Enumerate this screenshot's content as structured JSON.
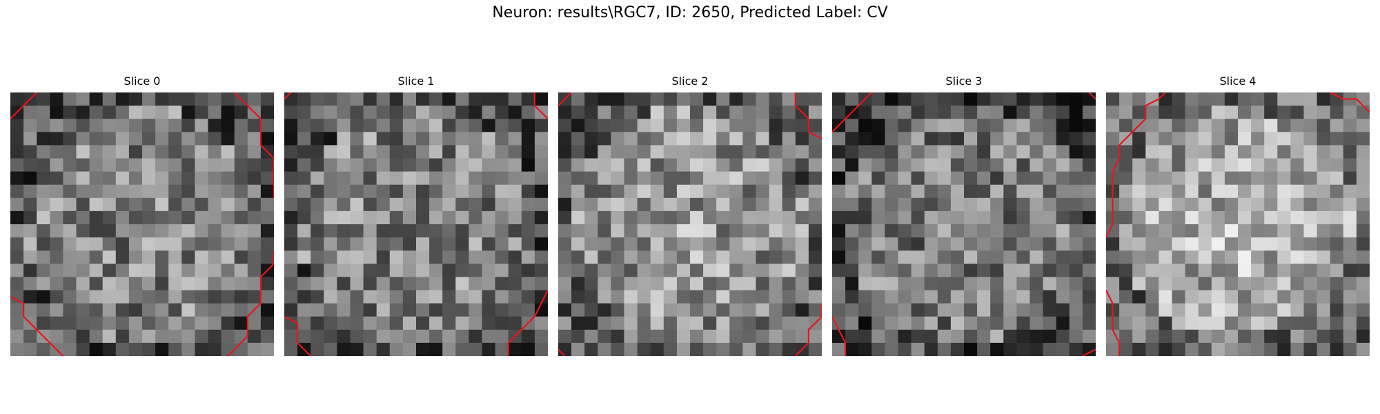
{
  "figure": {
    "title": "Neuron: results\\RGC7, ID: 2650, Predicted Label: CV"
  },
  "slices": [
    {
      "title": "Slice 0",
      "seed": 11,
      "base": 128,
      "radius": 0.9,
      "contrast": 0,
      "contours": [
        [
          [
            0,
            2
          ],
          [
            2,
            0
          ]
        ],
        [
          [
            17,
            0
          ],
          [
            19,
            2
          ],
          [
            19,
            4
          ],
          [
            20,
            5
          ],
          [
            20,
            8
          ]
        ],
        [
          [
            0,
            15.5
          ],
          [
            1,
            16
          ],
          [
            1,
            17
          ],
          [
            4,
            20
          ],
          [
            4,
            21
          ]
        ],
        [
          [
            14,
            21
          ],
          [
            15,
            20.5
          ],
          [
            16,
            20.5
          ],
          [
            18,
            18.5
          ],
          [
            18,
            17
          ],
          [
            19,
            16
          ],
          [
            19,
            14
          ],
          [
            20,
            13
          ],
          [
            20,
            12
          ]
        ]
      ]
    },
    {
      "title": "Slice 1",
      "seed": 23,
      "base": 128,
      "radius": 0.9,
      "contrast": 0,
      "contours": [
        [
          [
            0,
            0.5
          ],
          [
            0.5,
            0
          ]
        ],
        [
          [
            19,
            0
          ],
          [
            19,
            1
          ],
          [
            20,
            2
          ]
        ],
        [
          [
            0,
            17
          ],
          [
            1,
            17.5
          ],
          [
            1,
            19
          ],
          [
            3,
            21
          ]
        ],
        [
          [
            16,
            21
          ],
          [
            17,
            20
          ],
          [
            17,
            19
          ],
          [
            19,
            17
          ],
          [
            20,
            15
          ]
        ]
      ]
    },
    {
      "title": "Slice 2",
      "seed": 37,
      "base": 138,
      "radius": 0.9,
      "contrast": 18,
      "contours": [
        [
          [
            0,
            1
          ],
          [
            1,
            0
          ]
        ],
        [
          [
            18,
            0
          ],
          [
            18,
            1
          ],
          [
            19,
            2
          ],
          [
            19,
            3
          ],
          [
            20,
            3.5
          ]
        ],
        [
          [
            0,
            19.5
          ],
          [
            0.5,
            20
          ]
        ],
        [
          [
            18,
            21
          ],
          [
            18,
            20
          ],
          [
            19,
            19
          ],
          [
            19,
            18
          ],
          [
            20,
            17
          ],
          [
            20,
            16
          ]
        ]
      ]
    },
    {
      "title": "Slice 3",
      "seed": 49,
      "base": 120,
      "radius": 0.9,
      "contrast": 0,
      "contours": [
        [
          [
            0,
            3
          ],
          [
            1,
            2
          ],
          [
            2,
            1
          ],
          [
            3,
            0
          ]
        ],
        [
          [
            19.5,
            0
          ],
          [
            20,
            0.5
          ]
        ],
        [
          [
            0,
            17
          ],
          [
            0.5,
            18
          ],
          [
            1,
            19
          ],
          [
            1,
            20
          ],
          [
            2,
            21
          ]
        ],
        [
          [
            19,
            21
          ],
          [
            19,
            20
          ],
          [
            20,
            19.5
          ]
        ]
      ]
    },
    {
      "title": "Slice 4",
      "seed": 61,
      "base": 150,
      "radius": 0.88,
      "contrast": 32,
      "contours": [
        [
          [
            0,
            11
          ],
          [
            0.5,
            10
          ],
          [
            0.5,
            6
          ],
          [
            1,
            5
          ],
          [
            1,
            4
          ],
          [
            2,
            3
          ],
          [
            3,
            2
          ],
          [
            3,
            1
          ],
          [
            4,
            0.5
          ],
          [
            4.5,
            0
          ]
        ],
        [
          [
            17,
            0
          ],
          [
            18,
            0.5
          ],
          [
            19,
            0.5
          ],
          [
            20,
            1.5
          ]
        ],
        [
          [
            0,
            15
          ],
          [
            0.5,
            16
          ],
          [
            0.5,
            18
          ],
          [
            1,
            19
          ],
          [
            1,
            20
          ],
          [
            2,
            21
          ]
        ]
      ]
    }
  ]
}
